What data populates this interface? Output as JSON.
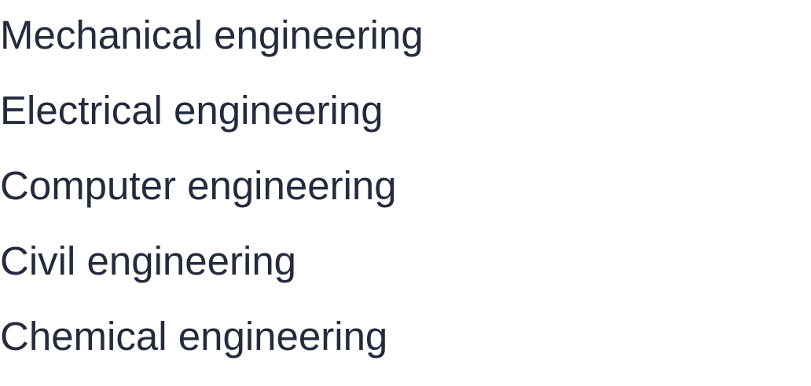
{
  "list": {
    "items": [
      {
        "label": "Mechanical engineering"
      },
      {
        "label": "Electrical engineering"
      },
      {
        "label": "Computer engineering"
      },
      {
        "label": "Civil engineering"
      },
      {
        "label": "Chemical engineering"
      }
    ]
  },
  "colors": {
    "text": "#242b3d",
    "background": "#ffffff"
  }
}
